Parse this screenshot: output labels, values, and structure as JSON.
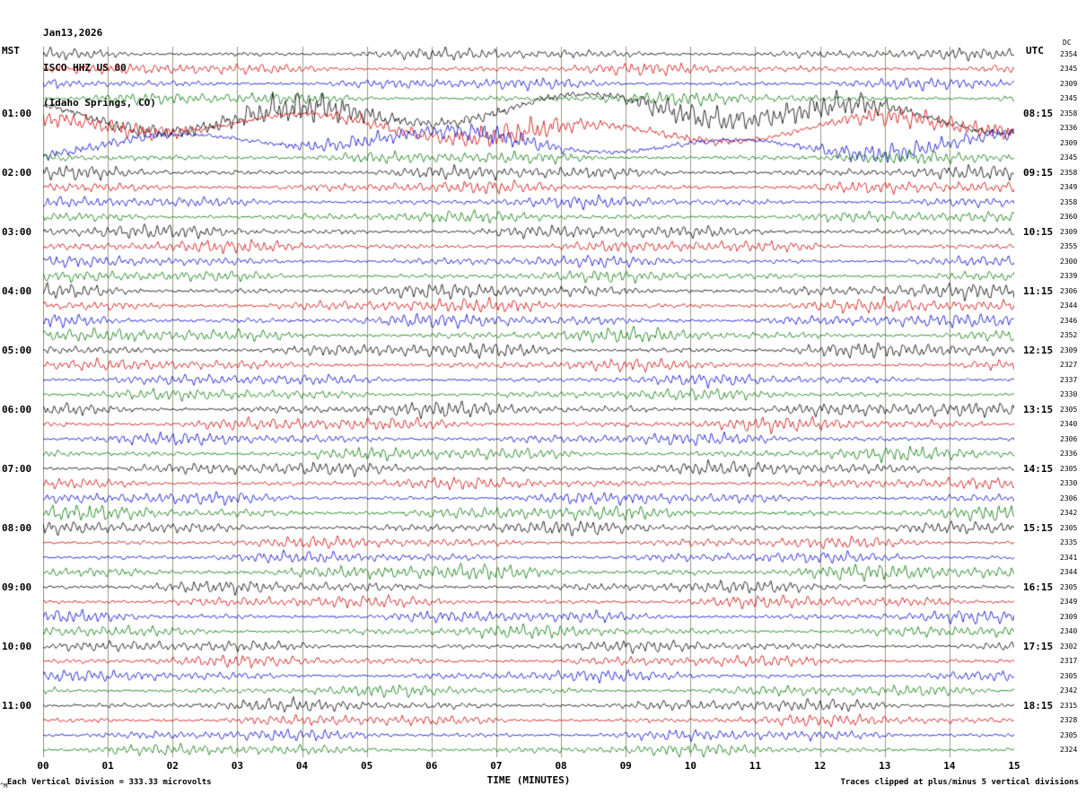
{
  "title": {
    "date": "Jan13,2026",
    "station": "ISCO HHZ US 00",
    "location": "(Idaho Springs, CO)"
  },
  "axes": {
    "left_header": "MST",
    "right_header": "UTC",
    "right_subheader": "DC",
    "x_ticks": [
      "00",
      "01",
      "02",
      "03",
      "04",
      "05",
      "06",
      "07",
      "08",
      "09",
      "10",
      "11",
      "12",
      "13",
      "14",
      "15"
    ],
    "left_hour_labels": [
      {
        "row": 4,
        "label": "01:00"
      },
      {
        "row": 8,
        "label": "02:00"
      },
      {
        "row": 12,
        "label": "03:00"
      },
      {
        "row": 16,
        "label": "04:00"
      },
      {
        "row": 20,
        "label": "05:00"
      },
      {
        "row": 24,
        "label": "06:00"
      },
      {
        "row": 28,
        "label": "07:00"
      },
      {
        "row": 32,
        "label": "08:00"
      },
      {
        "row": 36,
        "label": "09:00"
      },
      {
        "row": 40,
        "label": "10:00"
      },
      {
        "row": 44,
        "label": "11:00"
      }
    ],
    "right_hour_labels": [
      {
        "row": 4,
        "label": "08:15"
      },
      {
        "row": 8,
        "label": "09:15"
      },
      {
        "row": 12,
        "label": "10:15"
      },
      {
        "row": 16,
        "label": "11:15"
      },
      {
        "row": 20,
        "label": "12:15"
      },
      {
        "row": 24,
        "label": "13:15"
      },
      {
        "row": 28,
        "label": "14:15"
      },
      {
        "row": 32,
        "label": "15:15"
      },
      {
        "row": 36,
        "label": "16:15"
      },
      {
        "row": 40,
        "label": "17:15"
      },
      {
        "row": 44,
        "label": "18:15"
      }
    ]
  },
  "footer": {
    "left": "Each Vertical Division =  333.33 microvolts",
    "center": "TIME (MINUTES)",
    "right": "Traces clipped at plus/minus 5 vertical divisions",
    "corner": "^M"
  },
  "colors": {
    "grid": "#9a9a85",
    "background": "#ffffff",
    "text": "#000000"
  },
  "chart_data": {
    "type": "line",
    "title": "ISCO HHZ US 00 helicorder record, Jan13,2026 (Idaho Springs, CO)",
    "xlabel": "TIME (MINUTES)",
    "x_range_minutes": [
      0,
      15
    ],
    "rows": 48,
    "minutes_per_row": 15,
    "start_time_mst": "00:00",
    "end_time_mst": "12:00",
    "utc_offset_label": "UTC = MST + 7:15 column alignment",
    "row_colors": [
      "#000000",
      "#cc0000",
      "#0000cc",
      "#007700"
    ],
    "grid": {
      "vertical_line_every_minute": true,
      "legend": "none"
    },
    "microvolts_per_division": 333.33,
    "clip_divisions": 5,
    "waveform_note": "Continuous microseismic background noise; amplitudes below are relative envelope estimates per 15-minute trace row read from the plot; rows 4-6 (01:00-01:45 MST) show large slow-period wander.",
    "row_amplitudes": [
      1.0,
      1.0,
      1.0,
      1.1,
      2.4,
      1.9,
      1.6,
      1.1,
      1.2,
      1.1,
      1.0,
      1.0,
      1.2,
      1.1,
      1.0,
      1.0,
      1.3,
      1.2,
      1.2,
      1.2,
      1.3,
      1.0,
      1.0,
      1.0,
      1.3,
      1.2,
      1.1,
      1.2,
      1.2,
      1.0,
      1.1,
      1.3,
      1.2,
      1.0,
      1.0,
      1.4,
      1.1,
      1.1,
      1.1,
      1.1,
      1.0,
      1.0,
      1.0,
      1.0,
      1.1,
      1.0,
      1.0,
      1.0
    ],
    "slow_rows": [
      4,
      5,
      6
    ],
    "dc_values": [
      "2354",
      "2345",
      "2309",
      "2345",
      "2358",
      "2336",
      "2309",
      "2345",
      "2358",
      "2349",
      "2358",
      "2360",
      "2309",
      "2355",
      "2300",
      "2339",
      "2306",
      "2344",
      "2346",
      "2352",
      "2309",
      "2327",
      "2337",
      "2330",
      "2305",
      "2340",
      "2306",
      "2336",
      "2305",
      "2330",
      "2306",
      "2342",
      "2305",
      "2335",
      "2341",
      "2344",
      "2305",
      "2349",
      "2309",
      "2340",
      "2302",
      "2317",
      "2305",
      "2342",
      "2315",
      "2328",
      "2305",
      "2324"
    ]
  }
}
